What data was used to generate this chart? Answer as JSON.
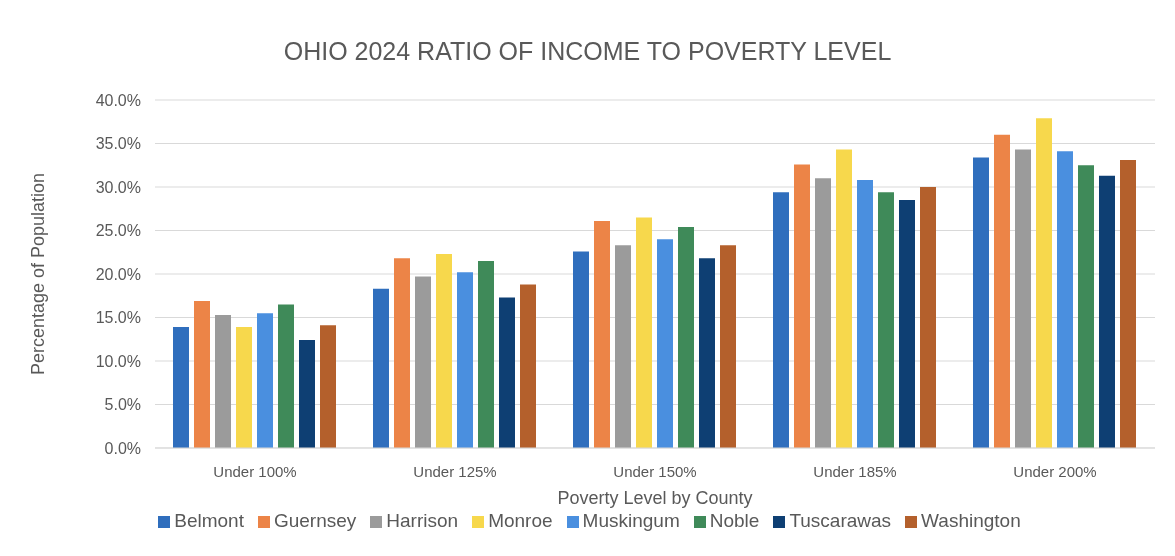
{
  "chart_data": {
    "type": "bar",
    "title": "OHIO 2024 RATIO OF INCOME TO POVERTY LEVEL",
    "xlabel": "Poverty Level by County",
    "ylabel": "Percentage of Population",
    "categories": [
      "Under 100%",
      "Under 125%",
      "Under 150%",
      "Under 185%",
      "Under 200%"
    ],
    "series": [
      {
        "name": "Belmont",
        "color": "#2f6ebd",
        "values": [
          13.9,
          18.3,
          22.6,
          29.4,
          33.4
        ]
      },
      {
        "name": "Guernsey",
        "color": "#ec8447",
        "values": [
          16.9,
          21.8,
          26.1,
          32.6,
          36.0
        ]
      },
      {
        "name": "Harrison",
        "color": "#9b9b9b",
        "values": [
          15.3,
          19.7,
          23.3,
          31.0,
          34.3
        ]
      },
      {
        "name": "Monroe",
        "color": "#f7d84c",
        "values": [
          13.9,
          22.3,
          26.5,
          34.3,
          37.9
        ]
      },
      {
        "name": "Muskingum",
        "color": "#4a8fdf",
        "values": [
          15.5,
          20.2,
          24.0,
          30.8,
          34.1
        ]
      },
      {
        "name": "Noble",
        "color": "#3f8a59",
        "values": [
          16.5,
          21.5,
          25.4,
          29.4,
          32.5
        ]
      },
      {
        "name": "Tuscarawas",
        "color": "#0e3f73",
        "values": [
          12.4,
          17.3,
          21.8,
          28.5,
          31.3
        ]
      },
      {
        "name": "Washington",
        "color": "#b4602c",
        "values": [
          14.1,
          18.8,
          23.3,
          30.0,
          33.1
        ]
      }
    ],
    "ylim": [
      0,
      40
    ],
    "yticks": [
      {
        "value": 0,
        "label": "0.0%"
      },
      {
        "value": 5,
        "label": "5.0%"
      },
      {
        "value": 10,
        "label": "10.0%"
      },
      {
        "value": 15,
        "label": "15.0%"
      },
      {
        "value": 20,
        "label": "20.0%"
      },
      {
        "value": 25,
        "label": "25.0%"
      },
      {
        "value": 30,
        "label": "30.0%"
      },
      {
        "value": 35,
        "label": "35.0%"
      },
      {
        "value": 40,
        "label": "40.0%"
      }
    ],
    "grid": "y",
    "legend": "bottom"
  }
}
